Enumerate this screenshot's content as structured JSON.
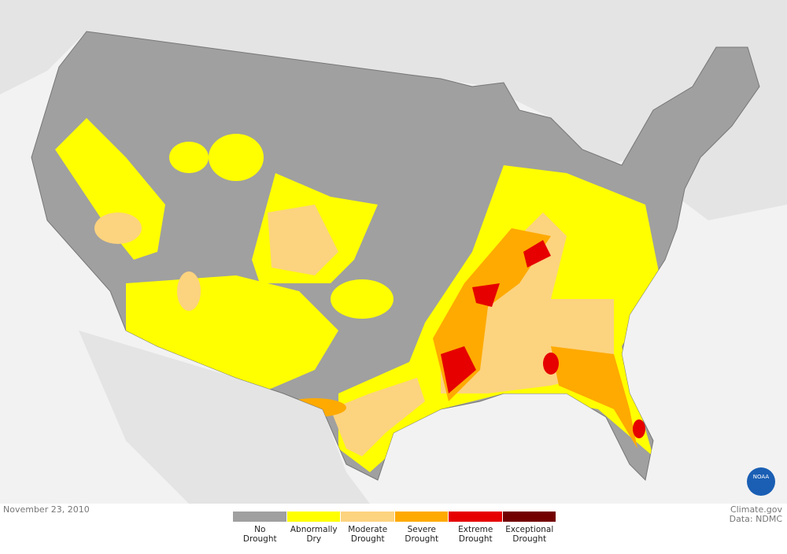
{
  "date": "November 23, 2010",
  "credit": {
    "site": "Climate.gov",
    "source": "Data: NDMC"
  },
  "logo": "NOAA",
  "legend": [
    {
      "label": "No Drought",
      "color": "#a0a0a0"
    },
    {
      "label": "Abnormally Dry",
      "color": "#ffff00"
    },
    {
      "label": "Moderate Drought",
      "color": "#fcd37f"
    },
    {
      "label": "Severe Drought",
      "color": "#ffaa00"
    },
    {
      "label": "Extreme Drought",
      "color": "#e60000"
    },
    {
      "label": "Exceptional Drought",
      "color": "#730000"
    }
  ]
}
